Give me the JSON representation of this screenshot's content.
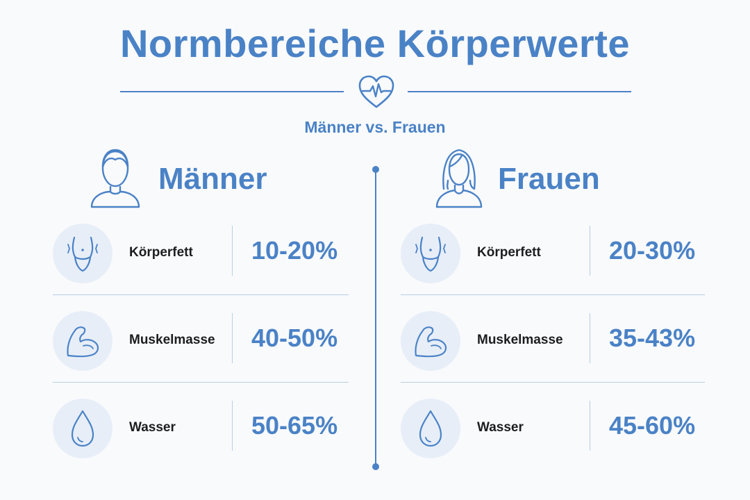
{
  "title": "Normbereiche Körperwerte",
  "subtitle": "Männer vs. Frauen",
  "accent_color": "#4a82c6",
  "men": {
    "heading": "Männer",
    "icon": "man-icon",
    "rows": [
      {
        "label": "Körperfett",
        "value": "10-20%",
        "icon": "waist-icon"
      },
      {
        "label": "Muskelmasse",
        "value": "40-50%",
        "icon": "muscle-arm-icon"
      },
      {
        "label": "Wasser",
        "value": "50-65%",
        "icon": "water-drop-icon"
      }
    ]
  },
  "women": {
    "heading": "Frauen",
    "icon": "woman-icon",
    "rows": [
      {
        "label": "Körperfett",
        "value": "20-30%",
        "icon": "waist-icon"
      },
      {
        "label": "Muskelmasse",
        "value": "35-43%",
        "icon": "muscle-arm-icon"
      },
      {
        "label": "Wasser",
        "value": "45-60%",
        "icon": "water-drop-icon"
      }
    ]
  }
}
